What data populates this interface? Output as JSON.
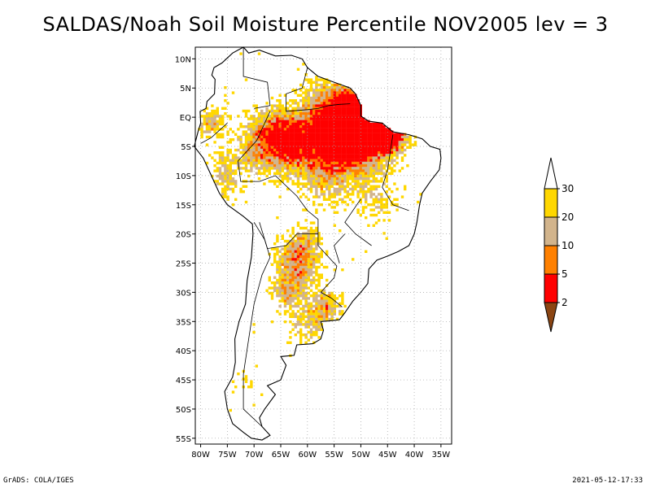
{
  "title": "SALDAS/Noah Soil Moisture Percentile NOV2005 lev = 3",
  "footer": {
    "left": "GrADS: COLA/IGES",
    "right": "2021-05-12-17:33"
  },
  "map": {
    "lat_labels": [
      "10N",
      "5N",
      "EQ",
      "5S",
      "10S",
      "15S",
      "20S",
      "25S",
      "30S",
      "35S",
      "40S",
      "45S",
      "50S",
      "55S"
    ],
    "lat_values": [
      10,
      5,
      0,
      -5,
      -10,
      -15,
      -20,
      -25,
      -30,
      -35,
      -40,
      -45,
      -50,
      -55
    ],
    "lon_labels": [
      "80W",
      "75W",
      "70W",
      "65W",
      "60W",
      "55W",
      "50W",
      "45W",
      "40W",
      "35W"
    ],
    "lon_values": [
      -80,
      -75,
      -70,
      -65,
      -60,
      -55,
      -50,
      -45,
      -40,
      -35
    ],
    "lon_range": [
      -81,
      -33
    ],
    "lat_range": [
      -56,
      12
    ]
  },
  "colorbar": {
    "labels": [
      "2",
      "5",
      "10",
      "20",
      "30"
    ],
    "colors": [
      "#8b4513",
      "#ff0000",
      "#ff8000",
      "#d2b48c",
      "#ffd700",
      "#ffffff"
    ]
  },
  "colors": {
    "dry_extreme": "#8b4513",
    "dry_2_5": "#ff0000",
    "dry_5_10": "#ff8000",
    "dry_10_20": "#d2b48c",
    "dry_20_30": "#ffd700",
    "grid": "#a0a0a0",
    "coast": "#000000"
  }
}
